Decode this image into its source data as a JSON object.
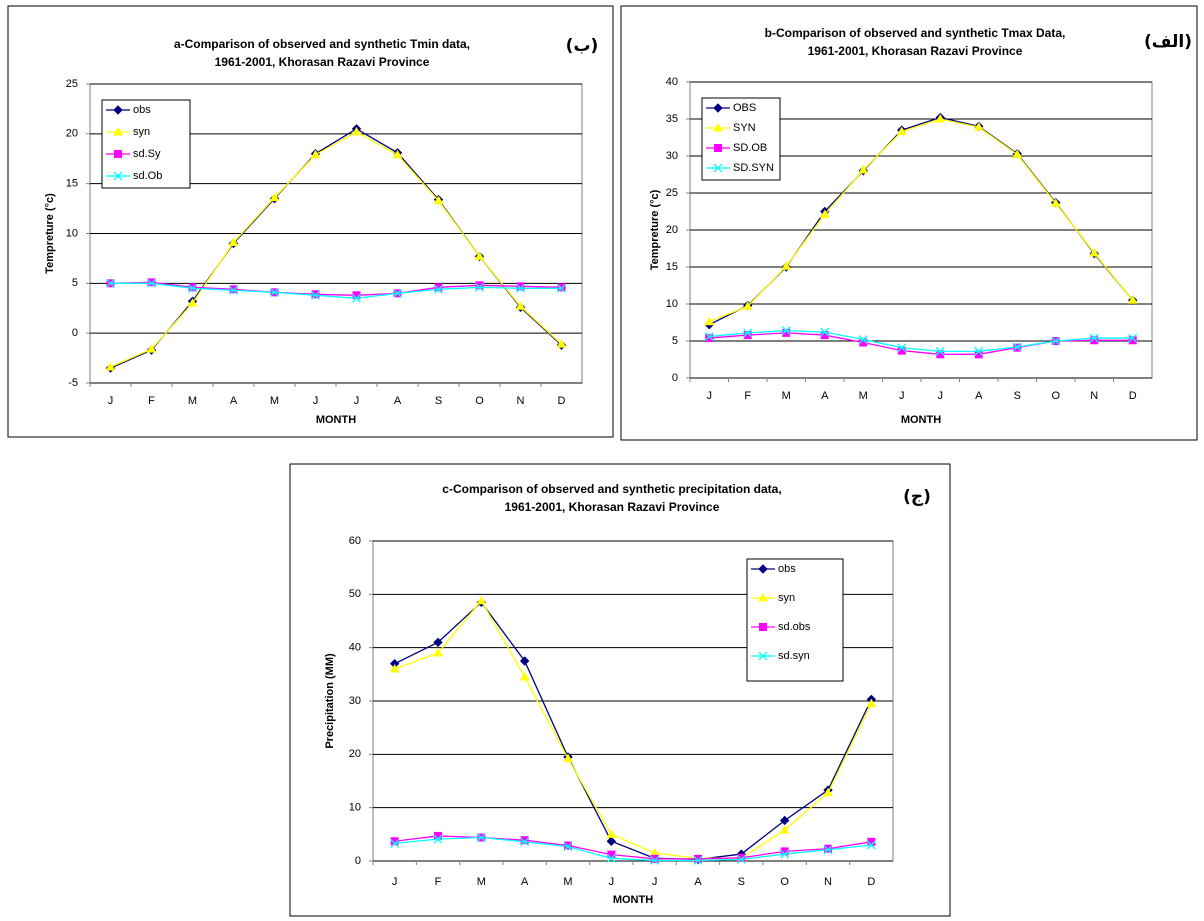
{
  "chart_data": [
    {
      "type": "line",
      "title": [
        "a-Comparison of observed and synthetic Tmin data,",
        "1961-2001, Khorasan Razavi  Province"
      ],
      "annotation": "(ب)",
      "y_label": "Tempreture (°c)",
      "x_label": "MONTH",
      "categories": [
        "J",
        "F",
        "M",
        "A",
        "M",
        "J",
        "J",
        "A",
        "S",
        "O",
        "N",
        "D"
      ],
      "ylim": [
        -5,
        25
      ],
      "yticks": [
        -5,
        0,
        5,
        10,
        15,
        20,
        25
      ],
      "grid": true,
      "legend": "top-left",
      "series": [
        {
          "name": "obs",
          "color": "#000080",
          "marker": "diamond",
          "values": [
            -3.5,
            -1.7,
            3.2,
            9.0,
            13.5,
            18.0,
            20.5,
            18.1,
            13.4,
            7.7,
            2.6,
            -1.2
          ]
        },
        {
          "name": "syn",
          "color": "#ffff00",
          "marker": "triangle",
          "values": [
            -3.4,
            -1.6,
            3.0,
            9.1,
            13.6,
            17.9,
            20.2,
            17.9,
            13.3,
            7.7,
            2.7,
            -1.1
          ]
        },
        {
          "name": "sd.Sy",
          "color": "#ff00ff",
          "marker": "square",
          "values": [
            5.0,
            5.1,
            4.6,
            4.4,
            4.1,
            3.9,
            3.8,
            4.0,
            4.6,
            4.8,
            4.7,
            4.6
          ]
        },
        {
          "name": "sd.Ob",
          "color": "#00ffff",
          "marker": "cross",
          "values": [
            5.0,
            5.0,
            4.5,
            4.3,
            4.1,
            3.8,
            3.5,
            4.0,
            4.4,
            4.6,
            4.5,
            4.5
          ]
        }
      ]
    },
    {
      "type": "line",
      "title": [
        "b-Comparison of observed and synthetic Tmax Data,",
        "1961-2001,  Khorasan Razavi  Province"
      ],
      "annotation": "(الف)",
      "y_label": "Tempreture (°c)",
      "x_label": "MONTH",
      "categories": [
        "J",
        "F",
        "M",
        "A",
        "M",
        "J",
        "J",
        "A",
        "S",
        "O",
        "N",
        "D"
      ],
      "ylim": [
        0,
        40
      ],
      "yticks": [
        0,
        5,
        10,
        15,
        20,
        25,
        30,
        35,
        40
      ],
      "grid": true,
      "legend": "top-left",
      "series": [
        {
          "name": "OBS",
          "color": "#000080",
          "marker": "diamond",
          "values": [
            7.2,
            9.8,
            15.0,
            22.5,
            28.0,
            33.5,
            35.2,
            34.0,
            30.3,
            23.7,
            16.8,
            10.5
          ]
        },
        {
          "name": "SYN",
          "color": "#ffff00",
          "marker": "triangle",
          "values": [
            7.6,
            9.7,
            15.1,
            22.1,
            28.1,
            33.3,
            35.0,
            33.9,
            30.2,
            23.6,
            16.9,
            10.5
          ]
        },
        {
          "name": "SD.OB",
          "color": "#ff00ff",
          "marker": "square",
          "values": [
            5.4,
            5.8,
            6.1,
            5.8,
            4.8,
            3.7,
            3.2,
            3.2,
            4.1,
            5.0,
            5.1,
            5.1
          ]
        },
        {
          "name": "SD.SYN",
          "color": "#00ffff",
          "marker": "cross",
          "values": [
            5.6,
            6.1,
            6.4,
            6.2,
            5.2,
            4.1,
            3.6,
            3.6,
            4.2,
            5.0,
            5.4,
            5.4
          ]
        }
      ]
    },
    {
      "type": "line",
      "title": [
        "c-Comparison of observed and synthetic precipitation data,",
        "1961-2001,  Khorasan Razavi  Province"
      ],
      "annotation": "(ج)",
      "y_label": "Precipitation (MM)",
      "x_label": "MONTH",
      "categories": [
        "J",
        "F",
        "M",
        "A",
        "M",
        "J",
        "J",
        "A",
        "S",
        "O",
        "N",
        "D"
      ],
      "ylim": [
        0,
        60
      ],
      "yticks": [
        0,
        10,
        20,
        30,
        40,
        50,
        60
      ],
      "grid": true,
      "legend": "top-right",
      "series": [
        {
          "name": "obs",
          "color": "#000080",
          "marker": "diamond",
          "values": [
            37,
            41,
            48.5,
            37.5,
            19.5,
            3.7,
            0.5,
            0.3,
            1.3,
            7.6,
            13.3,
            30.3
          ]
        },
        {
          "name": "syn",
          "color": "#ffff00",
          "marker": "triangle",
          "values": [
            36,
            39,
            48.8,
            34.5,
            19.2,
            5.0,
            1.5,
            0.5,
            0.5,
            5.8,
            12.8,
            29.5
          ]
        },
        {
          "name": "sd.obs",
          "color": "#ff00ff",
          "marker": "square",
          "values": [
            3.7,
            4.7,
            4.4,
            3.9,
            2.9,
            1.2,
            0.4,
            0.4,
            0.6,
            1.8,
            2.3,
            3.6
          ]
        },
        {
          "name": "sd.syn",
          "color": "#00ffff",
          "marker": "cross",
          "values": [
            3.3,
            4.1,
            4.4,
            3.6,
            2.7,
            0.5,
            0.1,
            0.1,
            0.3,
            1.3,
            2.1,
            3.0
          ]
        }
      ]
    }
  ]
}
